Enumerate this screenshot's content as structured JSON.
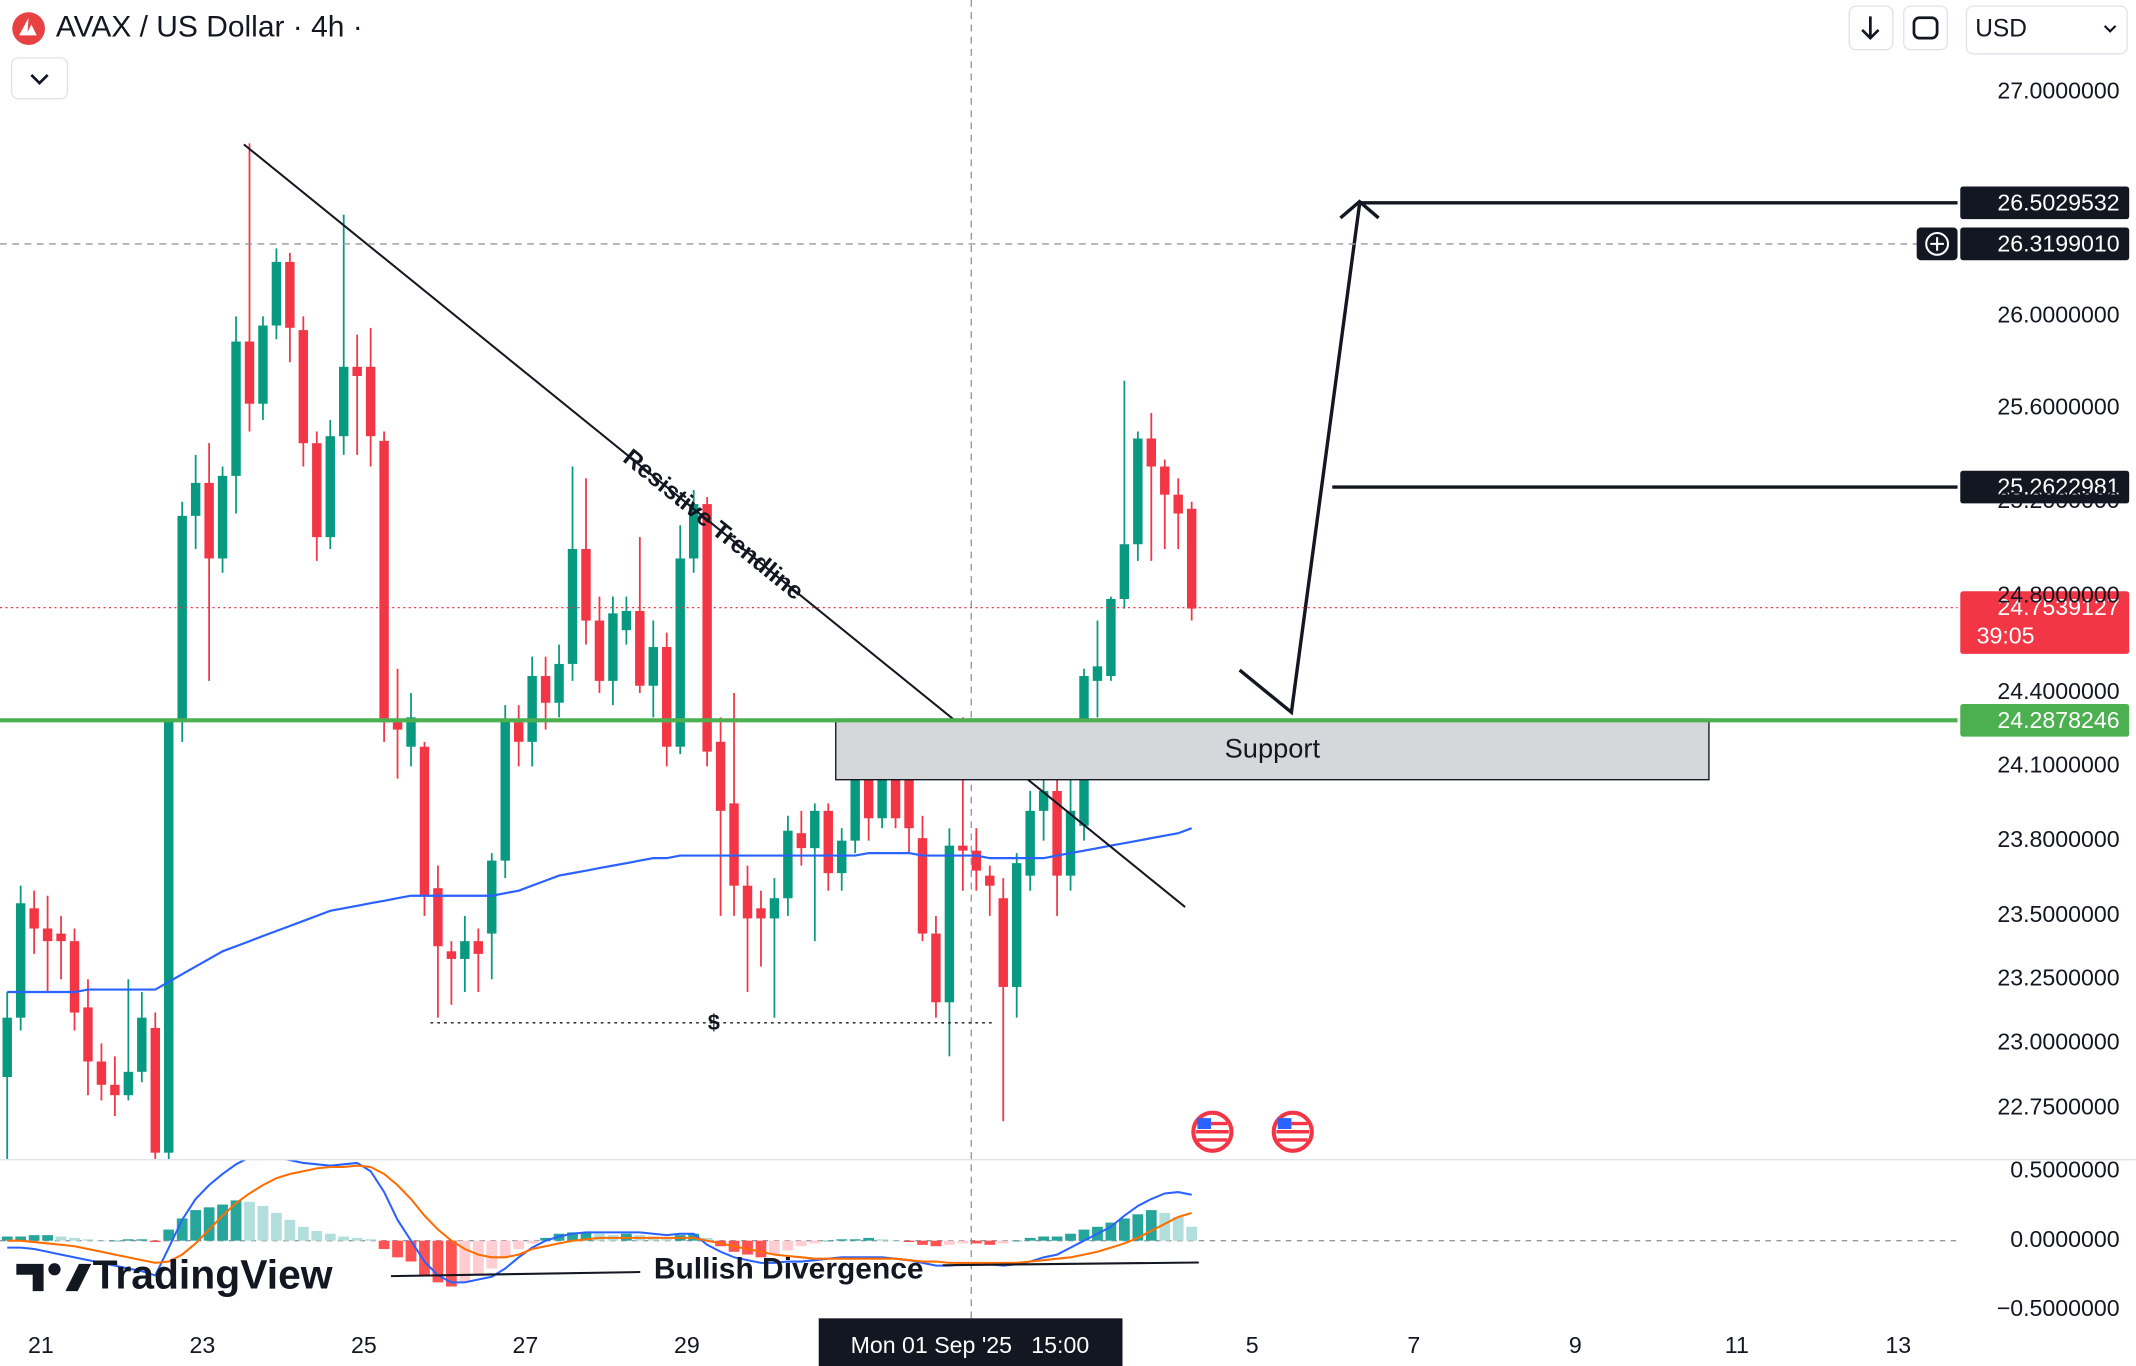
{
  "header": {
    "symbol": "AVAX / US Dollar · 4h ·",
    "currency": "USD"
  },
  "watermark": "TradingView",
  "chart_data": [
    {
      "type": "candlestick",
      "log_scale": true,
      "xlim": [
        -0.036,
        145.4
      ],
      "ylim": [
        22.556,
        27.425
      ],
      "xticks": [
        {
          "value": 3,
          "label": "21"
        },
        {
          "value": 15,
          "label": "23"
        },
        {
          "value": 27,
          "label": "25"
        },
        {
          "value": 39,
          "label": "27"
        },
        {
          "value": 51,
          "label": "29"
        },
        {
          "value": 93,
          "label": "5"
        },
        {
          "value": 105,
          "label": "7"
        },
        {
          "value": 117,
          "label": "9"
        },
        {
          "value": 129,
          "label": "11"
        },
        {
          "value": 141,
          "label": "13"
        }
      ],
      "yticks": [
        {
          "value": 27,
          "label": "27.0000000"
        },
        {
          "value": 26,
          "label": "26.0000000"
        },
        {
          "value": 25.6,
          "label": "25.6000000"
        },
        {
          "value": 25.2,
          "label": "25.2000000"
        },
        {
          "value": 24.8,
          "label": "24.8000000"
        },
        {
          "value": 24.4,
          "label": "24.4000000"
        },
        {
          "value": 24.1,
          "label": "24.1000000"
        },
        {
          "value": 23.8,
          "label": "23.8000000"
        },
        {
          "value": 23.5,
          "label": "23.5000000"
        },
        {
          "value": 23.25,
          "label": "23.2500000"
        },
        {
          "value": 23,
          "label": "23.0000000"
        },
        {
          "value": 22.75,
          "label": "22.7500000"
        }
      ],
      "up_color": "#089981",
      "down_color": "#f23645",
      "open": [
        22.87,
        23.1,
        23.53,
        23.45,
        23.43,
        23.4,
        23.14,
        22.93,
        22.84,
        22.8,
        22.89,
        23.06,
        22.58,
        24.29,
        25.14,
        25.28,
        24.96,
        25.31,
        25.89,
        25.62,
        25.96,
        26.24,
        25.94,
        25.45,
        25.05,
        25.48,
        25.78,
        25.78,
        25.46,
        24.28,
        24.18,
        24.18,
        23.61,
        23.36,
        23.33,
        23.4,
        23.43,
        23.72,
        24.28,
        24.2,
        24.47,
        24.36,
        24.52,
        25.0,
        24.7,
        24.45,
        24.66,
        24.74,
        24.43,
        24.59,
        24.18,
        24.96,
        25.19,
        24.2,
        23.95,
        23.62,
        23.53,
        23.49,
        23.57,
        23.83,
        23.77,
        23.92,
        23.67,
        23.8,
        24.06,
        23.89,
        24.05,
        24.05,
        23.81,
        23.43,
        23.16,
        23.78,
        23.76,
        23.66,
        23.57,
        23.22,
        23.66,
        23.92,
        24.0,
        23.66,
        23.86,
        24.45,
        24.47,
        24.79,
        25.02,
        25.47,
        25.35,
        25.23,
        25.17
      ],
      "high": [
        23.2,
        23.62,
        23.6,
        23.58,
        23.5,
        23.45,
        23.25,
        23.0,
        22.95,
        23.25,
        23.2,
        23.12,
        24.29,
        25.2,
        25.4,
        25.45,
        25.35,
        26.0,
        26.77,
        26.0,
        26.3,
        26.28,
        26.0,
        25.5,
        25.55,
        26.45,
        25.92,
        25.95,
        25.5,
        24.5,
        24.4,
        24.2,
        23.7,
        23.4,
        23.5,
        23.45,
        23.75,
        24.35,
        24.35,
        24.55,
        24.55,
        24.6,
        25.35,
        25.3,
        24.8,
        24.8,
        24.8,
        25.05,
        24.7,
        24.65,
        25.1,
        25.25,
        25.22,
        24.3,
        24.4,
        23.7,
        23.6,
        23.65,
        23.9,
        23.92,
        23.95,
        23.95,
        23.85,
        24.1,
        24.1,
        24.15,
        24.1,
        24.1,
        23.9,
        23.5,
        23.85,
        24.3,
        23.85,
        23.7,
        23.65,
        23.75,
        24.0,
        24.2,
        24.05,
        24.05,
        24.5,
        24.7,
        24.8,
        25.72,
        25.5,
        25.58,
        25.38,
        25.3,
        25.2
      ],
      "low": [
        22.55,
        23.05,
        23.35,
        23.2,
        23.25,
        23.05,
        22.8,
        22.78,
        22.72,
        22.78,
        22.85,
        22.55,
        22.55,
        24.2,
        25.0,
        24.45,
        24.9,
        25.15,
        25.5,
        25.55,
        25.9,
        25.8,
        25.35,
        24.95,
        25.0,
        25.4,
        25.4,
        25.35,
        24.2,
        24.05,
        24.1,
        23.5,
        23.1,
        23.15,
        23.2,
        23.2,
        23.25,
        23.65,
        24.1,
        24.1,
        24.25,
        24.3,
        24.45,
        24.6,
        24.4,
        24.35,
        24.6,
        24.4,
        24.3,
        24.1,
        24.15,
        24.9,
        24.1,
        23.5,
        23.5,
        23.2,
        23.3,
        23.1,
        23.5,
        23.7,
        23.4,
        23.6,
        23.6,
        23.75,
        23.8,
        23.85,
        23.85,
        23.75,
        23.4,
        23.1,
        22.95,
        23.6,
        23.6,
        23.5,
        22.7,
        23.1,
        23.6,
        23.8,
        23.5,
        23.6,
        23.8,
        24.3,
        24.45,
        24.75,
        24.95,
        24.95,
        25.0,
        25.0,
        24.7
      ],
      "close": [
        23.1,
        23.55,
        23.45,
        23.4,
        23.4,
        23.12,
        22.93,
        22.84,
        22.8,
        22.89,
        23.1,
        22.58,
        24.29,
        25.14,
        25.28,
        24.96,
        25.31,
        25.89,
        25.62,
        25.96,
        26.24,
        25.95,
        25.45,
        25.05,
        25.48,
        25.78,
        25.74,
        25.48,
        24.28,
        24.25,
        24.3,
        23.58,
        23.38,
        23.33,
        23.4,
        23.35,
        23.72,
        24.29,
        24.2,
        24.47,
        24.36,
        24.52,
        25.0,
        24.7,
        24.45,
        24.73,
        24.74,
        24.43,
        24.59,
        24.18,
        24.96,
        25.19,
        24.16,
        23.92,
        23.62,
        23.49,
        23.49,
        23.57,
        23.84,
        23.77,
        23.92,
        23.67,
        23.8,
        24.06,
        23.89,
        24.05,
        23.89,
        23.85,
        23.43,
        23.16,
        23.78,
        23.76,
        23.68,
        23.62,
        23.22,
        23.71,
        23.92,
        24.0,
        23.66,
        23.92,
        24.47,
        24.51,
        24.79,
        25.02,
        25.47,
        25.35,
        25.23,
        25.15,
        24.75
      ],
      "moving_average": {
        "color": "#2962ff",
        "values": [
          23.2,
          23.2,
          23.2,
          23.2,
          23.2,
          23.2,
          23.21,
          23.21,
          23.21,
          23.21,
          23.21,
          23.21,
          23.24,
          23.27,
          23.3,
          23.33,
          23.36,
          23.38,
          23.4,
          23.42,
          23.44,
          23.46,
          23.48,
          23.5,
          23.52,
          23.53,
          23.54,
          23.55,
          23.56,
          23.57,
          23.58,
          23.58,
          23.58,
          23.58,
          23.58,
          23.58,
          23.58,
          23.59,
          23.6,
          23.62,
          23.64,
          23.66,
          23.67,
          23.68,
          23.69,
          23.7,
          23.71,
          23.72,
          23.73,
          23.73,
          23.74,
          23.74,
          23.74,
          23.74,
          23.74,
          23.74,
          23.74,
          23.74,
          23.74,
          23.74,
          23.74,
          23.74,
          23.74,
          23.74,
          23.75,
          23.75,
          23.75,
          23.75,
          23.74,
          23.74,
          23.74,
          23.74,
          23.74,
          23.73,
          23.73,
          23.73,
          23.73,
          23.73,
          23.74,
          23.75,
          23.76,
          23.77,
          23.78,
          23.79,
          23.8,
          23.81,
          23.82,
          23.83,
          23.85
        ]
      },
      "price_labels": [
        {
          "value": 26.5029532,
          "color": "#131722",
          "line_style": "solid"
        },
        {
          "value": {
            "value": 26.319901,
            "label": "26.3199010"
          },
          "color": "#131722",
          "line_style": "dashed"
        },
        {
          "value": 25.2622981,
          "color": "#131722",
          "line_style": "solid"
        },
        {
          "value": 24.7539127,
          "color": "#f23645",
          "line_style": "dotted",
          "countdown": "39:05"
        },
        {
          "value": 24.2878246,
          "color": "#4caf50",
          "line_style": "thick"
        }
      ],
      "annotations": {
        "trendline": "Resistive Trendline",
        "zone": "Support",
        "liquidity": "$"
      },
      "crosshair_label": "Mon 01 Sep '25   15:00"
    },
    {
      "type": "macd",
      "ylim": [
        -0.559,
        0.588
      ],
      "yticks": [
        {
          "value": 0.5,
          "label": "0.5000000"
        },
        {
          "value": 0,
          "label": "0.0000000"
        },
        {
          "value": -0.5,
          "label": "−0.5000000"
        }
      ],
      "histogram": [
        0.03,
        0.03,
        0.04,
        0.04,
        0.03,
        0.02,
        0.01,
        0.0,
        0.0,
        0.01,
        0.01,
        -0.01,
        0.08,
        0.16,
        0.22,
        0.24,
        0.26,
        0.29,
        0.28,
        0.25,
        0.2,
        0.15,
        0.1,
        0.07,
        0.05,
        0.03,
        0.02,
        0.01,
        -0.06,
        -0.12,
        -0.15,
        -0.25,
        -0.3,
        -0.33,
        -0.3,
        -0.24,
        -0.2,
        -0.12,
        -0.06,
        -0.02,
        0.02,
        0.05,
        0.06,
        0.06,
        0.05,
        0.04,
        0.05,
        0.04,
        0.03,
        0.02,
        0.04,
        0.05,
        0.02,
        -0.04,
        -0.08,
        -0.1,
        -0.12,
        -0.1,
        -0.07,
        -0.04,
        -0.02,
        0.0,
        0.01,
        0.01,
        0.02,
        0.01,
        0.0,
        -0.01,
        -0.03,
        -0.04,
        -0.03,
        -0.02,
        -0.02,
        -0.03,
        -0.02,
        0.0,
        0.02,
        0.03,
        0.03,
        0.05,
        0.08,
        0.1,
        0.13,
        0.16,
        0.19,
        0.22,
        0.2,
        0.17,
        0.1
      ],
      "series": [
        {
          "color": "#2962ff",
          "values": [
            -0.05,
            -0.05,
            -0.06,
            -0.08,
            -0.1,
            -0.12,
            -0.14,
            -0.16,
            -0.18,
            -0.2,
            -0.22,
            -0.25,
            -0.05,
            0.15,
            0.3,
            0.4,
            0.48,
            0.55,
            0.6,
            0.62,
            0.6,
            0.58,
            0.56,
            0.55,
            0.54,
            0.55,
            0.56,
            0.5,
            0.35,
            0.15,
            0.0,
            -0.15,
            -0.25,
            -0.3,
            -0.3,
            -0.28,
            -0.26,
            -0.2,
            -0.12,
            -0.05,
            0.0,
            0.03,
            0.05,
            0.06,
            0.06,
            0.06,
            0.06,
            0.06,
            0.05,
            0.04,
            0.05,
            0.05,
            -0.03,
            -0.08,
            -0.12,
            -0.14,
            -0.16,
            -0.16,
            -0.15,
            -0.15,
            -0.14,
            -0.13,
            -0.12,
            -0.12,
            -0.12,
            -0.12,
            -0.13,
            -0.14,
            -0.16,
            -0.18,
            -0.18,
            -0.17,
            -0.17,
            -0.17,
            -0.18,
            -0.17,
            -0.15,
            -0.12,
            -0.1,
            -0.05,
            0.0,
            0.05,
            0.1,
            0.18,
            0.25,
            0.3,
            0.34,
            0.35,
            0.33
          ]
        },
        {
          "color": "#ff6d00",
          "values": [
            0.0,
            0.0,
            -0.01,
            -0.02,
            -0.03,
            -0.04,
            -0.06,
            -0.08,
            -0.1,
            -0.12,
            -0.14,
            -0.16,
            -0.15,
            -0.1,
            -0.02,
            0.08,
            0.18,
            0.27,
            0.34,
            0.4,
            0.45,
            0.48,
            0.5,
            0.52,
            0.53,
            0.53,
            0.54,
            0.53,
            0.48,
            0.4,
            0.3,
            0.18,
            0.08,
            0.0,
            -0.06,
            -0.1,
            -0.12,
            -0.12,
            -0.1,
            -0.06,
            -0.04,
            -0.02,
            0.0,
            0.01,
            0.02,
            0.02,
            0.02,
            0.02,
            0.02,
            0.02,
            0.02,
            0.02,
            0.0,
            -0.02,
            -0.04,
            -0.06,
            -0.08,
            -0.1,
            -0.11,
            -0.12,
            -0.13,
            -0.13,
            -0.13,
            -0.13,
            -0.13,
            -0.13,
            -0.13,
            -0.14,
            -0.15,
            -0.15,
            -0.16,
            -0.16,
            -0.16,
            -0.16,
            -0.16,
            -0.16,
            -0.15,
            -0.14,
            -0.13,
            -0.12,
            -0.1,
            -0.08,
            -0.05,
            -0.02,
            0.02,
            0.07,
            0.12,
            0.17,
            0.2
          ]
        }
      ],
      "annotation": "Bullish Divergence"
    }
  ]
}
